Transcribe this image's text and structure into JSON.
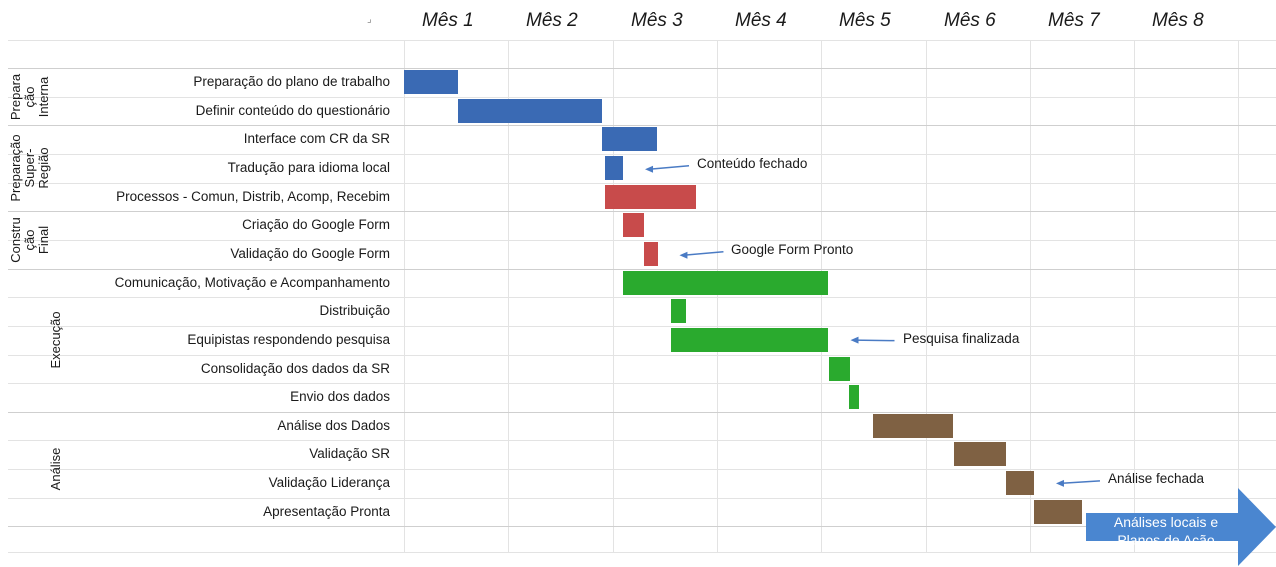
{
  "chart_data": {
    "type": "gantt",
    "months": [
      "Mês 1",
      "Mês 2",
      "Mês 3",
      "Mês 4",
      "Mês 5",
      "Mês 6",
      "Mês 7",
      "Mês 8"
    ],
    "phases": [
      {
        "label": "Prepara\nção\nInterna",
        "tasks": [
          0,
          1
        ]
      },
      {
        "label": "Preparação\nSuper-\nRegião",
        "tasks": [
          2,
          3,
          4
        ]
      },
      {
        "label": "Constru\nção\nFinal",
        "tasks": [
          5,
          6
        ]
      },
      {
        "label": "Execução",
        "tasks": [
          7,
          8,
          9,
          10,
          11
        ]
      },
      {
        "label": "Análise",
        "tasks": [
          12,
          13,
          14,
          15
        ]
      }
    ],
    "tasks": [
      {
        "label": "Preparação do plano de trabalho",
        "start": 0.0,
        "end": 0.52,
        "color": "#3a6ab4"
      },
      {
        "label": "Definir conteúdo do questionário",
        "start": 0.52,
        "end": 1.9,
        "color": "#3a6ab4"
      },
      {
        "label": "Interface com CR da SR",
        "start": 1.9,
        "end": 2.43,
        "color": "#3a6ab4"
      },
      {
        "label": "Tradução para idioma local",
        "start": 1.93,
        "end": 2.1,
        "color": "#3a6ab4"
      },
      {
        "label": "Processos - Comun, Distrib, Acomp, Recebim",
        "start": 1.93,
        "end": 2.8,
        "color": "#c84b4b"
      },
      {
        "label": "Criação do Google Form",
        "start": 2.1,
        "end": 2.3,
        "color": "#c84b4b"
      },
      {
        "label": "Validação do Google Form",
        "start": 2.3,
        "end": 2.43,
        "color": "#c84b4b"
      },
      {
        "label": "Comunicação, Motivação e Acompanhamento",
        "start": 2.1,
        "end": 4.07,
        "color": "#2aaa2e"
      },
      {
        "label": "Distribuição",
        "start": 2.56,
        "end": 2.7,
        "color": "#2aaa2e"
      },
      {
        "label": "Equipistas respondendo pesquisa",
        "start": 2.56,
        "end": 4.07,
        "color": "#2aaa2e"
      },
      {
        "label": "Consolidação dos dados da SR",
        "start": 4.07,
        "end": 4.27,
        "color": "#2aaa2e"
      },
      {
        "label": "Envio dos dados",
        "start": 4.27,
        "end": 4.37,
        "color": "#2aaa2e"
      },
      {
        "label": "Análise dos Dados",
        "start": 4.5,
        "end": 5.27,
        "color": "#7f6143"
      },
      {
        "label": "Validação SR",
        "start": 5.27,
        "end": 5.77,
        "color": "#7f6143"
      },
      {
        "label": "Validação Liderança",
        "start": 5.77,
        "end": 6.04,
        "color": "#7f6143"
      },
      {
        "label": "Apresentação Pronta",
        "start": 6.04,
        "end": 6.5,
        "color": "#7f6143"
      }
    ],
    "annotations": [
      {
        "text": "Conteúdo fechado",
        "task": 3
      },
      {
        "text": "Google Form Pronto",
        "task": 6
      },
      {
        "text": "Pesquisa finalizada",
        "task": 9
      },
      {
        "text": "Análise fechada",
        "task": 14
      }
    ],
    "final_arrow": {
      "text": "Análises locais e\nPlanos de Ação",
      "color": "#4a86d0"
    }
  }
}
